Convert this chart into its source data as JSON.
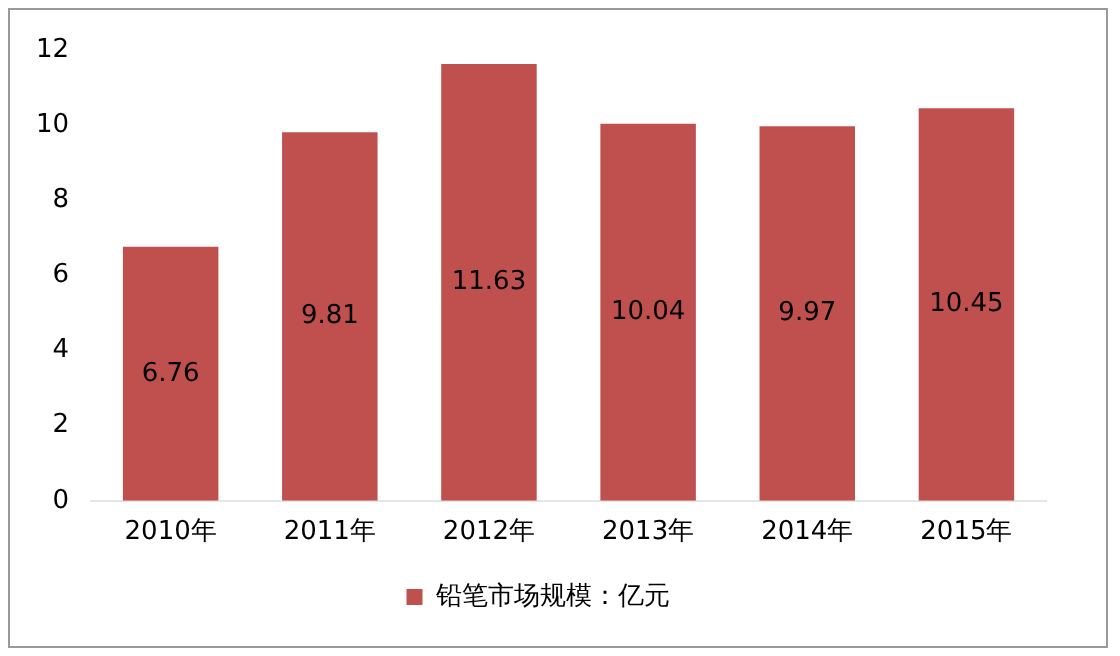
{
  "chart_data": {
    "type": "bar",
    "categories": [
      "2010年",
      "2011年",
      "2012年",
      "2013年",
      "2014年",
      "2015年"
    ],
    "series": [
      {
        "name": "铅笔市场规模：亿元",
        "color": "#c0504d",
        "values": [
          6.76,
          9.81,
          11.63,
          10.04,
          9.97,
          10.45
        ]
      }
    ],
    "ylim": [
      0,
      12
    ],
    "yticks": [
      0,
      2,
      4,
      6,
      8,
      10,
      12
    ],
    "grid": false,
    "legend": "bottom",
    "data_labels": true
  }
}
